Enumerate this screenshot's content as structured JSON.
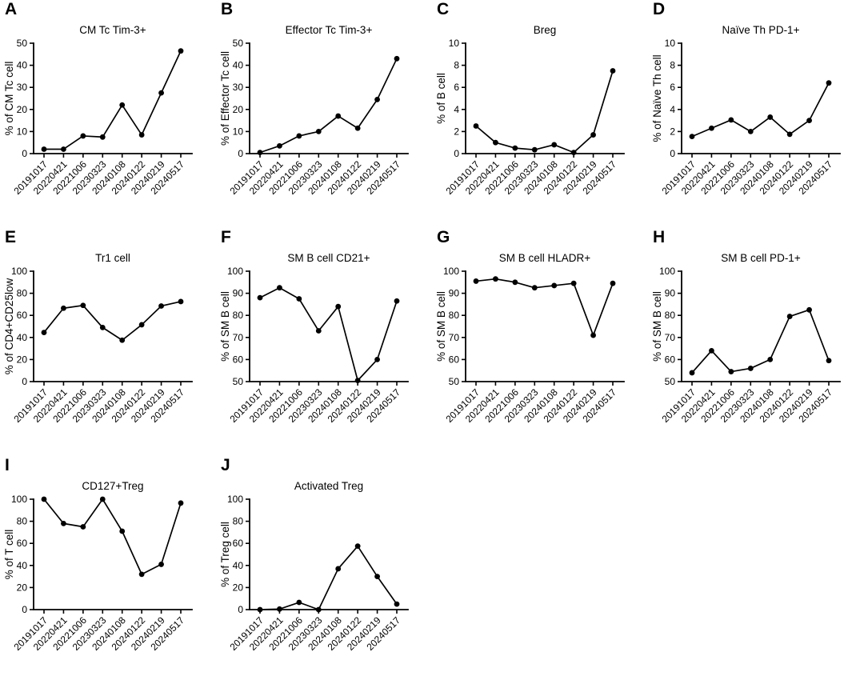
{
  "figure": {
    "background": "#ffffff",
    "line_color": "#000000",
    "marker": "filled-circle",
    "grid": false,
    "legend": "none",
    "x_categories": [
      "20191017",
      "20220421",
      "20221006",
      "20230323",
      "20240108",
      "20240122",
      "20240219",
      "20240517"
    ]
  },
  "chart_data": [
    {
      "panel": "A",
      "type": "line",
      "title": "CM Tc Tim-3+",
      "ylabel": "% of CM Tc cell",
      "ylim": [
        0,
        50
      ],
      "yticks": [
        0,
        10,
        20,
        30,
        40,
        50
      ],
      "categories": [
        "20191017",
        "20220421",
        "20221006",
        "20230323",
        "20240108",
        "20240122",
        "20240219",
        "20240517"
      ],
      "values": [
        2,
        2,
        8,
        7.5,
        22,
        8.5,
        27.5,
        46.5
      ]
    },
    {
      "panel": "B",
      "type": "line",
      "title": "Effector Tc Tim-3+",
      "ylabel": "% of Effector Tc cell",
      "ylim": [
        0,
        50
      ],
      "yticks": [
        0,
        10,
        20,
        30,
        40,
        50
      ],
      "categories": [
        "20191017",
        "20220421",
        "20221006",
        "20230323",
        "20240108",
        "20240122",
        "20240219",
        "20240517"
      ],
      "values": [
        0.5,
        3.5,
        8,
        10,
        17,
        11.5,
        24.5,
        43
      ]
    },
    {
      "panel": "C",
      "type": "line",
      "title": "Breg",
      "ylabel": "% of B cell",
      "ylim": [
        0,
        10
      ],
      "yticks": [
        0,
        2,
        4,
        6,
        8,
        10
      ],
      "categories": [
        "20191017",
        "20220421",
        "20221006",
        "20230323",
        "20240108",
        "20240122",
        "20240219",
        "20240517"
      ],
      "values": [
        2.5,
        1.0,
        0.5,
        0.35,
        0.8,
        0.1,
        1.7,
        7.5
      ]
    },
    {
      "panel": "D",
      "type": "line",
      "title": "Naïve Th PD-1+",
      "ylabel": "% of Naïve Th cell",
      "ylim": [
        0,
        10
      ],
      "yticks": [
        0,
        2,
        4,
        6,
        8,
        10
      ],
      "categories": [
        "20191017",
        "20220421",
        "20221006",
        "20230323",
        "20240108",
        "20240122",
        "20240219",
        "20240517"
      ],
      "values": [
        1.55,
        2.3,
        3.05,
        2.0,
        3.3,
        1.75,
        3.0,
        6.4
      ]
    },
    {
      "panel": "E",
      "type": "line",
      "title": "Tr1 cell",
      "ylabel": "% of CD4+CD25low",
      "ylim": [
        0,
        100
      ],
      "yticks": [
        0,
        20,
        40,
        60,
        80,
        100
      ],
      "categories": [
        "20191017",
        "20220421",
        "20221006",
        "20230323",
        "20240108",
        "20240122",
        "20240219",
        "20240517"
      ],
      "values": [
        44.5,
        66.5,
        69,
        49,
        37.5,
        51.5,
        68.5,
        72.5
      ]
    },
    {
      "panel": "F",
      "type": "line",
      "title": "SM B cell CD21+",
      "ylabel": "% of SM B cell",
      "ylim": [
        50,
        100
      ],
      "yticks": [
        50,
        60,
        70,
        80,
        90,
        100
      ],
      "categories": [
        "20191017",
        "20220421",
        "20221006",
        "20230323",
        "20240108",
        "20240122",
        "20240219",
        "20240517"
      ],
      "values": [
        88,
        92.5,
        87.5,
        73,
        84,
        50.5,
        60,
        86.5
      ]
    },
    {
      "panel": "G",
      "type": "line",
      "title": "SM B cell HLADR+",
      "ylabel": "% of SM B cell",
      "ylim": [
        50,
        100
      ],
      "yticks": [
        50,
        60,
        70,
        80,
        90,
        100
      ],
      "categories": [
        "20191017",
        "20220421",
        "20221006",
        "20230323",
        "20240108",
        "20240122",
        "20240219",
        "20240517"
      ],
      "values": [
        95.5,
        96.5,
        95,
        92.5,
        93.5,
        94.5,
        71,
        94.5
      ]
    },
    {
      "panel": "H",
      "type": "line",
      "title": "SM B cell PD-1+",
      "ylabel": "% of SM B cell",
      "ylim": [
        50,
        100
      ],
      "yticks": [
        50,
        60,
        70,
        80,
        90,
        100
      ],
      "categories": [
        "20191017",
        "20220421",
        "20221006",
        "20230323",
        "20240108",
        "20240122",
        "20240219",
        "20240517"
      ],
      "values": [
        54,
        64,
        54.5,
        56,
        60,
        79.5,
        82.5,
        59.5
      ]
    },
    {
      "panel": "I",
      "type": "line",
      "title": "CD127+Treg",
      "ylabel": "% of T cell",
      "ylim": [
        0,
        100
      ],
      "yticks": [
        0,
        20,
        40,
        60,
        80,
        100
      ],
      "categories": [
        "20191017",
        "20220421",
        "20221006",
        "20230323",
        "20240108",
        "20240122",
        "20240219",
        "20240517"
      ],
      "values": [
        100,
        78,
        75,
        100,
        71,
        32,
        41,
        96.5
      ]
    },
    {
      "panel": "J",
      "type": "line",
      "title": "Activated Treg",
      "ylabel": "% of Treg cell",
      "ylim": [
        0,
        100
      ],
      "yticks": [
        0,
        20,
        40,
        60,
        80,
        100
      ],
      "categories": [
        "20191017",
        "20220421",
        "20221006",
        "20230323",
        "20240108",
        "20240122",
        "20240219",
        "20240517"
      ],
      "values": [
        0,
        0.5,
        6.5,
        0,
        37,
        57.5,
        30,
        5
      ]
    }
  ]
}
